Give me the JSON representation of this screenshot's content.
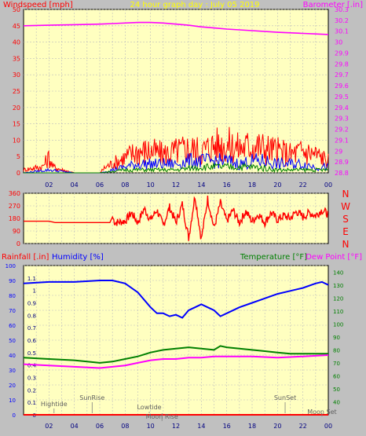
{
  "chart_data": [
    {
      "type": "line",
      "title": "24 hour graph day : July 05 2019",
      "ylabel_left": "Windspeed [mph]",
      "ylabel_right": "Barometer [.in]",
      "x_ticks": [
        "02",
        "04",
        "06",
        "08",
        "10",
        "12",
        "14",
        "16",
        "18",
        "20",
        "22",
        "00"
      ],
      "ylim_left": [
        0,
        50
      ],
      "yticks_left": [
        "0",
        "5",
        "10",
        "15",
        "20",
        "25",
        "30",
        "35",
        "40",
        "45",
        "50"
      ],
      "ylim_right": [
        28.8,
        30.3
      ],
      "yticks_right": [
        "28.8",
        "28.9",
        "29",
        "29.1",
        "29.2",
        "29.3",
        "29.4",
        "29.5",
        "29.6",
        "29.7",
        "29.8",
        "29.9",
        "30",
        "30.1",
        "30.2",
        "30.3"
      ],
      "grid": true,
      "series": [
        {
          "name": "Barometer",
          "axis": "right",
          "color": "#ff00ff",
          "x": [
            0,
            2,
            4,
            6,
            7,
            9,
            10,
            11,
            12,
            13,
            14,
            15,
            16,
            18,
            20,
            22,
            23,
            24
          ],
          "values": [
            30.15,
            30.155,
            30.16,
            30.165,
            30.17,
            30.18,
            30.18,
            30.175,
            30.165,
            30.155,
            30.14,
            30.13,
            30.12,
            30.105,
            30.09,
            30.08,
            30.075,
            30.07
          ]
        },
        {
          "name": "Windspeed gust",
          "axis": "left",
          "color": "#ff0000",
          "x": [
            0,
            1.5,
            2,
            2.3,
            3,
            4,
            6,
            6.5,
            7,
            8,
            9,
            10,
            11,
            12,
            13,
            14,
            15,
            16,
            17,
            18,
            19,
            20,
            21,
            22,
            23,
            24
          ],
          "values": [
            1,
            2,
            5,
            2,
            1,
            0,
            0,
            2,
            3,
            5,
            7,
            7,
            6,
            7,
            8,
            7,
            9,
            9,
            8,
            9,
            8,
            7,
            6,
            7,
            6,
            4
          ]
        },
        {
          "name": "Windspeed average",
          "axis": "left",
          "color": "#0000ff",
          "x": [
            0,
            2,
            4,
            6,
            7,
            8,
            9,
            10,
            11,
            12,
            13,
            14,
            15,
            16,
            17,
            18,
            19,
            20,
            21,
            22,
            23,
            24
          ],
          "values": [
            0,
            1,
            0,
            0,
            1,
            2,
            3,
            3,
            3,
            3,
            4,
            4,
            4,
            4,
            3,
            4,
            4,
            3,
            3,
            3,
            2,
            2
          ]
        },
        {
          "name": "Windspeed minimum",
          "axis": "left",
          "color": "#008000",
          "x": [
            0,
            2,
            4,
            6,
            8,
            10,
            12,
            14,
            16,
            18,
            20,
            22,
            24
          ],
          "values": [
            0,
            0,
            0,
            0,
            1,
            1,
            1,
            2,
            2,
            2,
            1,
            1,
            1
          ]
        }
      ]
    },
    {
      "type": "line",
      "x_ticks": [
        "02",
        "04",
        "06",
        "08",
        "10",
        "12",
        "14",
        "16",
        "18",
        "20",
        "22",
        "00"
      ],
      "ylim": [
        0,
        360
      ],
      "yticks": [
        "0",
        "90",
        "180",
        "270",
        "360"
      ],
      "compass_labels": [
        "N",
        "W",
        "S",
        "E",
        "N"
      ],
      "grid": true,
      "series": [
        {
          "name": "Wind direction",
          "color": "#ff0000",
          "x": [
            0,
            2,
            2.5,
            4,
            6,
            6.8,
            7,
            7.2,
            8,
            8.5,
            9,
            9.5,
            10,
            10.5,
            11,
            11.5,
            12,
            12.5,
            13,
            13.5,
            14,
            14.5,
            15,
            15.5,
            16,
            16.5,
            17,
            17.5,
            18,
            18.5,
            19,
            19.5,
            20,
            20.5,
            21,
            21.5,
            22,
            22.5,
            23,
            23.5,
            24
          ],
          "values": [
            160,
            160,
            150,
            150,
            150,
            150,
            190,
            150,
            160,
            220,
            150,
            250,
            170,
            240,
            130,
            260,
            150,
            280,
            40,
            340,
            30,
            320,
            110,
            290,
            160,
            240,
            150,
            230,
            160,
            210,
            150,
            220,
            170,
            200,
            180,
            230,
            190,
            220,
            200,
            240,
            210
          ]
        }
      ]
    },
    {
      "type": "line",
      "ylabel_left_1": "Rainfall [.in]",
      "ylabel_left_2": "Humidity [%]",
      "ylabel_right_1": "Temperature [°F]",
      "ylabel_right_2": "Dew Point [°F]",
      "x_ticks": [
        "02",
        "04",
        "06",
        "08",
        "10",
        "12",
        "14",
        "16",
        "18",
        "20",
        "22",
        "00"
      ],
      "ylim_rain": [
        0,
        1.2
      ],
      "yticks_rain": [
        "0",
        "0.1",
        "0.2",
        "0.3",
        "0.4",
        "0.5",
        "0.6",
        "0.7",
        "0.8",
        "0.9",
        "1",
        "1.1"
      ],
      "ylim_humidity": [
        0,
        100
      ],
      "yticks_humidity": [
        "0",
        "10",
        "20",
        "30",
        "40",
        "50",
        "60",
        "70",
        "80",
        "90",
        "100"
      ],
      "ylim_temp": [
        30,
        145
      ],
      "yticks_temp": [
        "40",
        "50",
        "60",
        "70",
        "80",
        "90",
        "100",
        "110",
        "120",
        "130",
        "140"
      ],
      "grid": true,
      "series": [
        {
          "name": "Humidity",
          "axis": "humidity",
          "color": "#0000ff",
          "x": [
            0,
            2,
            4,
            6,
            7,
            8,
            9,
            10,
            10.5,
            11,
            11.5,
            12,
            12.5,
            13,
            13.5,
            14,
            14.5,
            15,
            15.5,
            16,
            17,
            18,
            19,
            20,
            21,
            22,
            23,
            23.5,
            24
          ],
          "values": [
            88,
            89,
            89,
            90,
            90,
            88,
            82,
            72,
            68,
            68,
            66,
            67,
            65,
            70,
            72,
            74,
            72,
            70,
            66,
            68,
            72,
            75,
            78,
            81,
            83,
            85,
            88,
            89,
            87
          ]
        },
        {
          "name": "Temperature",
          "axis": "temp",
          "color": "#008000",
          "x": [
            0,
            2,
            4,
            6,
            7,
            8,
            9,
            10,
            11,
            12,
            13,
            14,
            15,
            15.5,
            16,
            17,
            18,
            19,
            20,
            21,
            22,
            24
          ],
          "values": [
            74,
            73,
            72,
            70,
            71,
            73,
            75,
            78,
            80,
            81,
            82,
            81,
            80,
            83,
            82,
            81,
            80,
            79,
            78,
            77,
            77,
            77
          ]
        },
        {
          "name": "Dew Point",
          "axis": "temp",
          "color": "#ff00ff",
          "x": [
            0,
            2,
            4,
            6,
            7,
            8,
            9,
            10,
            11,
            12,
            13,
            14,
            15,
            16,
            18,
            20,
            22,
            24
          ],
          "values": [
            69,
            68,
            67,
            66,
            67,
            68,
            70,
            72,
            73,
            73,
            74,
            74,
            75,
            75,
            75,
            74,
            75,
            76
          ]
        },
        {
          "name": "Rainfall",
          "axis": "rain",
          "color": "#ff0000",
          "x": [
            0,
            24
          ],
          "values": [
            0,
            0
          ]
        }
      ],
      "annotations": [
        {
          "label": "Hightide",
          "hour": 2.4
        },
        {
          "label": "SunRise",
          "hour": 5.4
        },
        {
          "label": "Lowtide",
          "hour": 9.9
        },
        {
          "label": "Moon Rise",
          "hour": 10.9
        },
        {
          "label": "SunSet",
          "hour": 20.6
        },
        {
          "label": "Moon Set",
          "hour": 23.5
        }
      ]
    }
  ]
}
